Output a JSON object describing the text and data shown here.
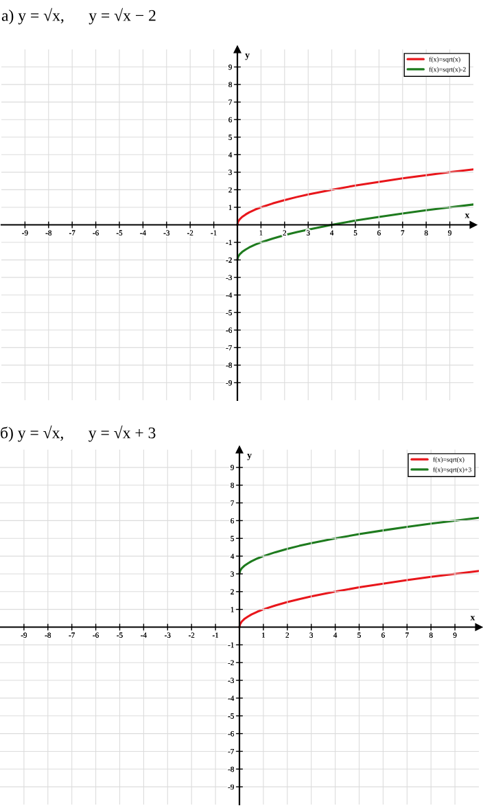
{
  "chart_data": [
    {
      "type": "line",
      "title": "а) y = √x,      y = √x − 2",
      "xlabel": "x",
      "ylabel": "y",
      "xlim": [
        -10,
        10
      ],
      "ylim": [
        -10,
        10
      ],
      "xticks": [
        -9,
        -8,
        -7,
        -6,
        -5,
        -4,
        -3,
        -2,
        -1,
        1,
        2,
        3,
        4,
        5,
        6,
        7,
        8,
        9
      ],
      "yticks": [
        -9,
        -8,
        -7,
        -6,
        -5,
        -4,
        -3,
        -2,
        -1,
        1,
        2,
        3,
        4,
        5,
        6,
        7,
        8,
        9
      ],
      "grid": true,
      "legend": "top right",
      "x": [
        0,
        0.02,
        0.05,
        0.1,
        0.2,
        0.35,
        0.5,
        0.75,
        1,
        1.5,
        2,
        2.5,
        3,
        4,
        5,
        6,
        7,
        8,
        9,
        10
      ],
      "series": [
        {
          "name": "f(x)=sqrt(x)",
          "color": "#e8161b",
          "values": [
            0,
            0.14,
            0.22,
            0.32,
            0.45,
            0.59,
            0.71,
            0.87,
            1,
            1.22,
            1.41,
            1.58,
            1.73,
            2,
            2.24,
            2.45,
            2.65,
            2.83,
            3,
            3.16
          ]
        },
        {
          "name": "f(x)=sqrt(x)-2",
          "color": "#1e7b1e",
          "values": [
            -2,
            -1.86,
            -1.78,
            -1.68,
            -1.55,
            -1.41,
            -1.29,
            -1.13,
            -1,
            -0.78,
            -0.59,
            -0.42,
            -0.27,
            0,
            0.24,
            0.45,
            0.65,
            0.83,
            1,
            1.16
          ]
        }
      ]
    },
    {
      "type": "line",
      "title": "б) y = √x,      y = √x + 3",
      "xlabel": "x",
      "ylabel": "y",
      "xlim": [
        -10,
        10
      ],
      "ylim": [
        -10,
        10
      ],
      "xticks": [
        -9,
        -8,
        -7,
        -6,
        -5,
        -4,
        -3,
        -2,
        -1,
        1,
        2,
        3,
        4,
        5,
        6,
        7,
        8,
        9
      ],
      "yticks": [
        -9,
        -8,
        -7,
        -6,
        -5,
        -4,
        -3,
        -2,
        -1,
        1,
        2,
        3,
        4,
        5,
        6,
        7,
        8,
        9
      ],
      "grid": true,
      "legend": "top right",
      "x": [
        0,
        0.02,
        0.05,
        0.1,
        0.2,
        0.35,
        0.5,
        0.75,
        1,
        1.5,
        2,
        2.5,
        3,
        4,
        5,
        6,
        7,
        8,
        9,
        10
      ],
      "series": [
        {
          "name": "f(x)=sqrt(x)",
          "color": "#e8161b",
          "values": [
            0,
            0.14,
            0.22,
            0.32,
            0.45,
            0.59,
            0.71,
            0.87,
            1,
            1.22,
            1.41,
            1.58,
            1.73,
            2,
            2.24,
            2.45,
            2.65,
            2.83,
            3,
            3.16
          ]
        },
        {
          "name": "f(x)=sqrt(x)+3",
          "color": "#1e7b1e",
          "values": [
            3,
            3.14,
            3.22,
            3.32,
            3.45,
            3.59,
            3.71,
            3.87,
            4,
            4.22,
            4.41,
            4.58,
            4.73,
            5,
            5.24,
            5.45,
            5.65,
            5.83,
            6,
            6.16
          ]
        }
      ]
    }
  ]
}
